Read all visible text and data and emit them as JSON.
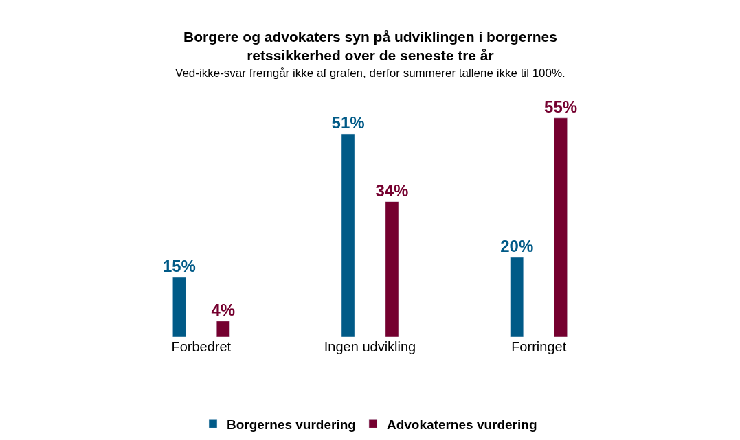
{
  "chart_data": {
    "type": "bar",
    "title": "Borgere og advokaters syn på udviklingen i borgernes retssikkerhed over de seneste tre år",
    "subtitle": "Ved-ikke-svar fremgår ikke af grafen, derfor summerer tallene ikke til 100%.",
    "categories": [
      "Forbedret",
      "Ingen udvikling",
      "Forringet"
    ],
    "series": [
      {
        "name": "Borgernes vurdering",
        "color": "#005a87",
        "values": [
          15,
          51,
          20
        ],
        "value_labels": [
          "15%",
          "51%",
          "20%"
        ]
      },
      {
        "name": "Advokaternes vurdering",
        "color": "#75002f",
        "values": [
          4,
          34,
          55
        ],
        "value_labels": [
          "4%",
          "34%",
          "55%"
        ]
      }
    ],
    "legend": "bottom",
    "grid": false
  }
}
